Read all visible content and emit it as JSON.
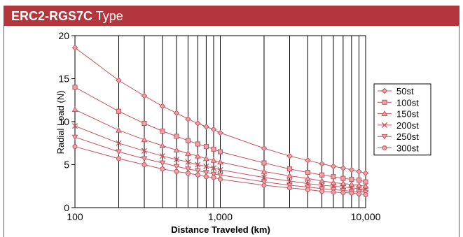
{
  "header": {
    "model": "ERC2-RGS7C",
    "type_label": "Type"
  },
  "colors": {
    "accent": "#b3363d",
    "series": "#c9545f",
    "grid": "#000000"
  },
  "chart_data": {
    "type": "line",
    "xlabel": "Distance Traveled (km)",
    "ylabel": "Radial Load (N)",
    "x_scale": "log",
    "xlim": [
      100,
      10000
    ],
    "ylim": [
      0,
      20
    ],
    "x_ticks": [
      {
        "value": 100,
        "label": "100"
      },
      {
        "value": 1000,
        "label": "1,000"
      },
      {
        "value": 10000,
        "label": "10,000"
      }
    ],
    "y_ticks": [
      {
        "value": 0,
        "label": "0"
      },
      {
        "value": 5,
        "label": "5"
      },
      {
        "value": 10,
        "label": "10"
      },
      {
        "value": 15,
        "label": "15"
      },
      {
        "value": 20,
        "label": "20"
      }
    ],
    "grid": "vertical-log-decades",
    "legend_position": "right",
    "x": [
      100,
      200,
      300,
      400,
      500,
      600,
      700,
      800,
      900,
      1000,
      2000,
      3000,
      4000,
      5000,
      6000,
      7000,
      8000,
      9000,
      10000
    ],
    "series": [
      {
        "name": "50st",
        "marker": "diamond",
        "values": [
          18.6,
          14.8,
          13.0,
          11.8,
          11.0,
          10.3,
          9.8,
          9.4,
          9.1,
          8.7,
          6.9,
          6.0,
          5.5,
          5.1,
          4.8,
          4.6,
          4.4,
          4.2,
          4.0
        ]
      },
      {
        "name": "100st",
        "marker": "square",
        "values": [
          14.0,
          11.2,
          9.8,
          8.9,
          8.3,
          7.8,
          7.4,
          7.1,
          6.8,
          6.5,
          5.2,
          4.5,
          4.1,
          3.8,
          3.6,
          3.4,
          3.3,
          3.2,
          3.0
        ]
      },
      {
        "name": "150st",
        "marker": "triangle-up",
        "values": [
          11.4,
          9.0,
          7.9,
          7.2,
          6.7,
          6.3,
          6.0,
          5.7,
          5.5,
          5.3,
          4.2,
          3.7,
          3.4,
          3.1,
          2.9,
          2.8,
          2.7,
          2.6,
          2.5
        ]
      },
      {
        "name": "200st",
        "marker": "x",
        "values": [
          9.5,
          7.5,
          6.6,
          6.0,
          5.6,
          5.3,
          5.0,
          4.8,
          4.6,
          4.4,
          3.5,
          3.1,
          2.8,
          2.6,
          2.5,
          2.4,
          2.3,
          2.2,
          2.1
        ]
      },
      {
        "name": "250st",
        "marker": "triangle-down",
        "values": [
          8.2,
          6.5,
          5.7,
          5.2,
          4.8,
          4.5,
          4.3,
          4.1,
          3.9,
          3.8,
          3.0,
          2.6,
          2.4,
          2.2,
          2.1,
          2.0,
          1.9,
          1.85,
          1.8
        ]
      },
      {
        "name": "300st",
        "marker": "circle",
        "values": [
          7.1,
          5.7,
          5.0,
          4.5,
          4.2,
          4.0,
          3.8,
          3.6,
          3.5,
          3.3,
          2.6,
          2.3,
          2.1,
          1.9,
          1.8,
          1.75,
          1.7,
          1.6,
          1.5
        ]
      }
    ]
  }
}
